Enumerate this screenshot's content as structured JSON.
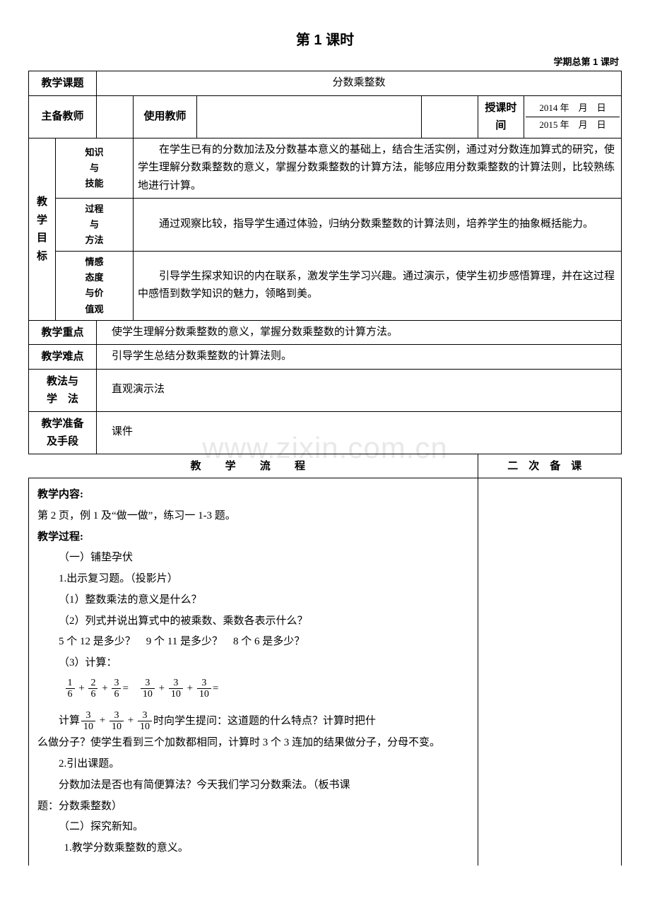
{
  "watermark": "www.zixin.com.cn",
  "page_title": "第 1 课时",
  "page_subtitle": "学期总第 1 课时",
  "row_topic_label": "教学课题",
  "row_topic_value": "分数乘整数",
  "row_teacher_label": "主备教师",
  "row_use_teacher_label": "使用教师",
  "row_time_label": "授课时间",
  "date_line1": "2014 年　月　日",
  "date_line2": "2015 年　月　日",
  "goals_label": "教\n学\n目\n标",
  "goal_k_label": "知识\n与\n技能",
  "goal_k_text": "在学生已有的分数加法及分数基本意义的基础上，结合生活实例，通过对分数连加算式的研究，使学生理解分数乘整数的意义，掌握分数乘整数的计算方法，能够应用分数乘整数的计算法则，比较熟练地进行计算。",
  "goal_p_label": "过程\n与\n方法",
  "goal_p_text": "通过观察比较，指导学生通过体验，归纳分数乘整数的计算法则，培养学生的抽象概括能力。",
  "goal_a_label": "情感\n态度\n与价\n值观",
  "goal_a_text": "引导学生探求知识的内在联系，激发学生学习兴趣。通过演示，使学生初步感悟算理，并在这过程中感悟到数学知识的魅力，领略到美。",
  "row_keypoint_label": "教学重点",
  "row_keypoint_value": "使学生理解分数乘整数的意义，掌握分数乘整数的计算方法。",
  "row_difficulty_label": "教学难点",
  "row_difficulty_value": "引导学生总结分数乘整数的计算法则。",
  "row_method_label": "教法与\n学　法",
  "row_method_value": "直观演示法",
  "row_prep_label": "教学准备\n及手段",
  "row_prep_value": "课件",
  "flow_label": "教 学 流 程",
  "rebackup_label": "二次备课",
  "flow": {
    "h_content": "教学内容:",
    "content_line": "第 2 页，例 1 及“做一做”，练习一 1-3 题。",
    "h_process": "教学过程:",
    "s1": "（一）铺垫孕伏",
    "s1_1": "1.出示复习题。（投影片）",
    "s1_1_1": "（1）整数乘法的意义是什么？",
    "s1_1_2": "（2）列式并说出算式中的被乘数、乘数各表示什么？",
    "s1_1_2b": "5 个 12 是多少？　9 个 11 是多少？　8 个 6 是多少？",
    "s1_1_3": "（3）计算：",
    "eq1": [
      [
        "1",
        "6"
      ],
      [
        "2",
        "6"
      ],
      [
        "3",
        "6"
      ]
    ],
    "eq2": [
      [
        "3",
        "10"
      ],
      [
        "3",
        "10"
      ],
      [
        "3",
        "10"
      ]
    ],
    "calc_pre": "计算",
    "calc_post": "时向学生提问：这道题的什么特点？计算时把什",
    "calc_cont": "么做分子？使学生看到三个加数都相同，计算时 3 个 3 连加的结果做分子，分母不变。",
    "s1_2": "2.引出课题。",
    "s1_2_t1": "分数加法是否也有简便算法？今天我们学习分数乘法。（板书课",
    "s1_2_t2": "题：分数乘整数）",
    "s2": "（二）探究新知。",
    "s2_1": "1.教学分数乘整数的意义。"
  }
}
